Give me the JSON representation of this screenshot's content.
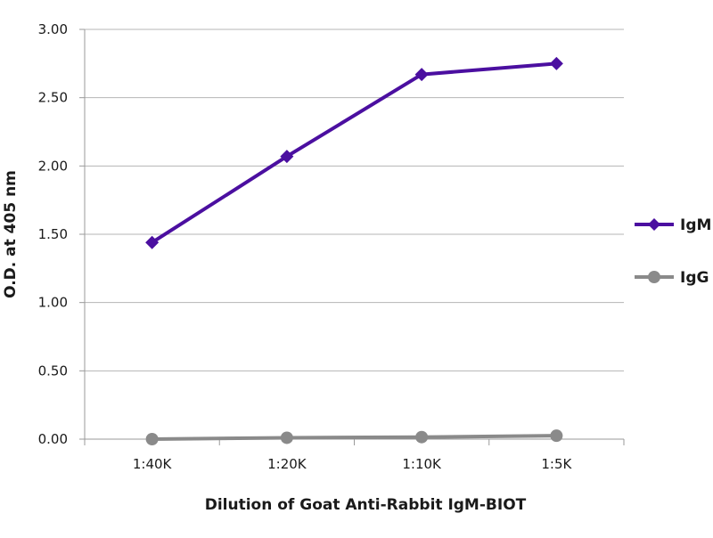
{
  "chart_data": {
    "type": "line",
    "title": "",
    "xlabel": "Dilution of Goat Anti-Rabbit IgM-BIOT",
    "ylabel": "O.D. at 405 nm",
    "categories": [
      "1:40K",
      "1:20K",
      "1:10K",
      "1:5K"
    ],
    "y_ticks": [
      "0.00",
      "0.50",
      "1.00",
      "1.50",
      "2.00",
      "2.50",
      "3.00"
    ],
    "ylim": [
      0,
      3
    ],
    "grid": true,
    "legend_position": "right",
    "series": [
      {
        "name": "IgM",
        "values": [
          1.44,
          2.07,
          2.67,
          2.75
        ],
        "color": "#4b0fa0",
        "marker": "diamond"
      },
      {
        "name": "IgG",
        "values": [
          0.0,
          0.01,
          0.015,
          0.025
        ],
        "color": "#8a8a8a",
        "marker": "circle"
      }
    ]
  }
}
